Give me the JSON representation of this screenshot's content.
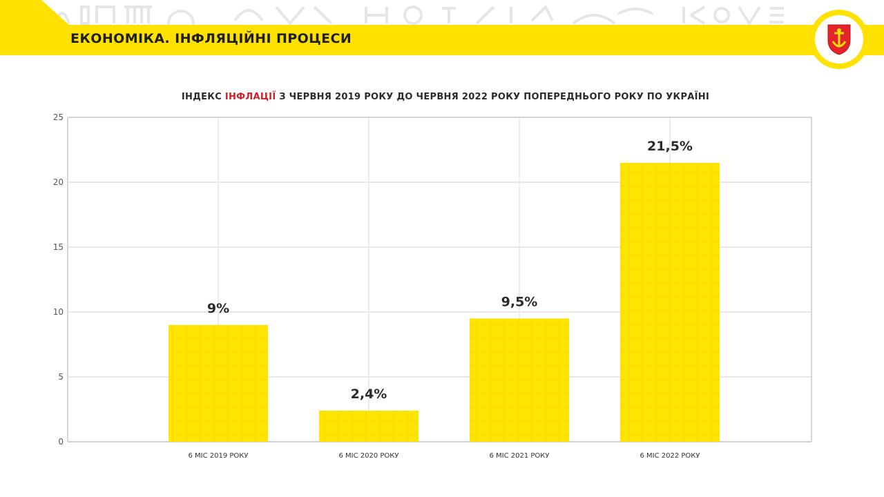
{
  "header": {
    "title": "ЕКОНОМІКА. ІНФЛЯЦІЙНІ ПРОЦЕСИ"
  },
  "colors": {
    "accent_yellow": "#FFE100",
    "bar_yellow": "#FFE400",
    "title_red": "#C8222A",
    "emblem_red": "#E3242B"
  },
  "chart_data": {
    "type": "bar",
    "title_parts": [
      "ІНДЕКС ",
      "ІНФЛАЦІЇ",
      " З ЧЕРВНЯ 2019 РОКУ ДО ЧЕРВНЯ 2022 РОКУ ПОПЕРЕДНЬОГО РОКУ ПО УКРАЇНІ"
    ],
    "categories": [
      "6 МІС 2019 РОКУ",
      "6 МІС 2020 РОКУ",
      "6 МІС 2021 РОКУ",
      "6 МІС 2022 РОКУ"
    ],
    "values": [
      9,
      2.4,
      9.5,
      21.5
    ],
    "data_labels": [
      "9%",
      "2,4%",
      "9,5%",
      "21,5%"
    ],
    "ylim": [
      0,
      25
    ],
    "yticks": [
      0,
      5,
      10,
      15,
      20,
      25
    ],
    "grid": true,
    "xlabel": "",
    "ylabel": ""
  }
}
